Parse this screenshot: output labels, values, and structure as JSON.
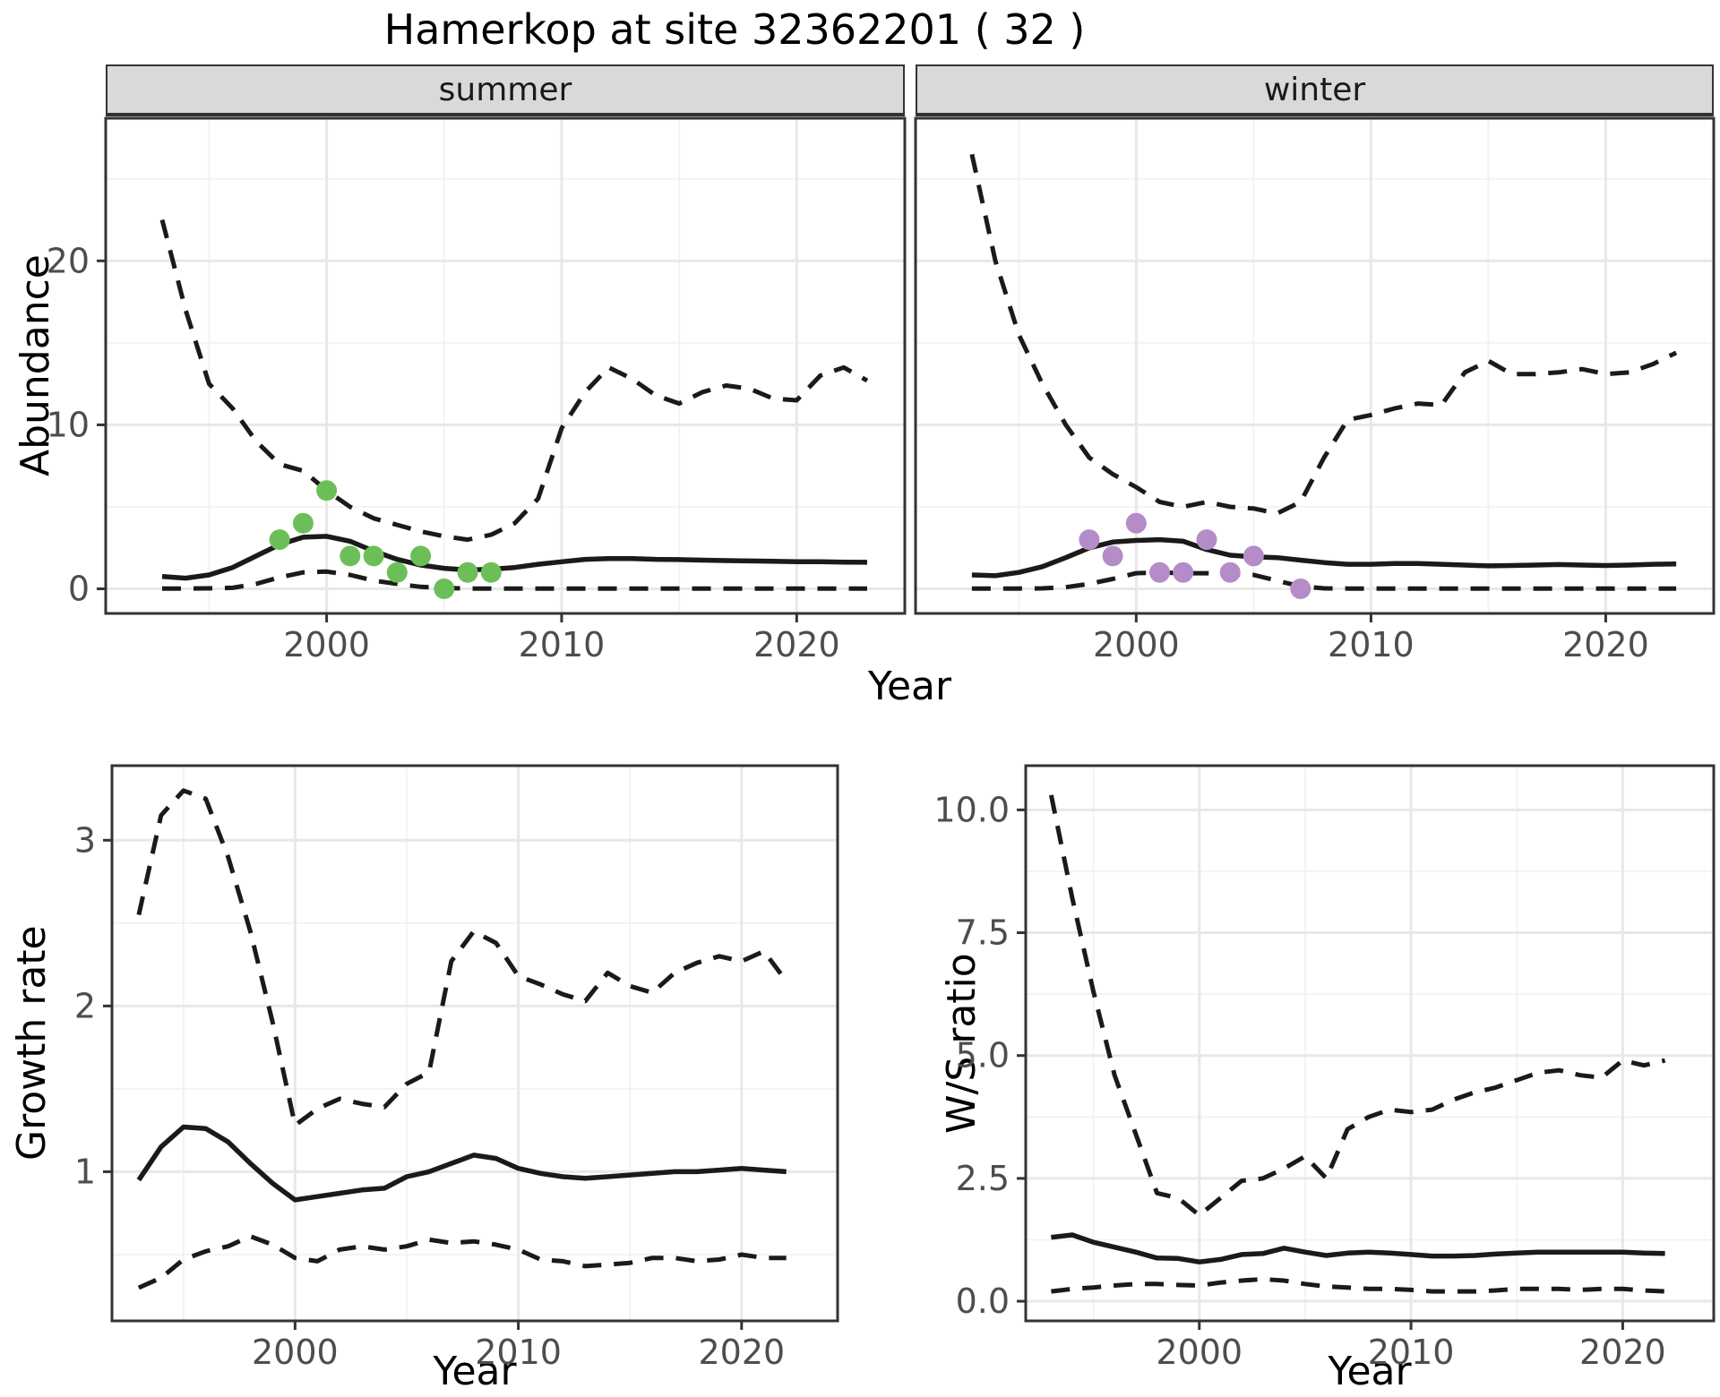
{
  "title": "Hamerkop at site 32362201 ( 32 )",
  "facets": {
    "summer": "summer",
    "winter": "winter"
  },
  "axis_titles": {
    "x_top": "Year",
    "x_bottom_left": "Year",
    "x_bottom_right": "Year",
    "y_top": "Abundance",
    "y_bottom_left": "Growth rate",
    "y_bottom_right": "W/S ratio"
  },
  "colors": {
    "background": "#ffffff",
    "line": "#1a1a1a",
    "grid_major": "#e8e8e8",
    "grid_minor": "#f2f2f2",
    "strip_bg": "#d9d9d9",
    "panel_border": "#333333",
    "tick_text": "#4d4d4d",
    "point_summer_green": "#6cbf58",
    "point_winter_purple": "#b48cc8"
  },
  "chart_data": [
    {
      "type": "line",
      "facet": "summer",
      "xlabel": "Year",
      "ylabel": "Abundance",
      "xlim": [
        1990.6,
        2024.6
      ],
      "ylim": [
        -1.5,
        28.7
      ],
      "xticks": [
        2000,
        2010,
        2020
      ],
      "xtick_labels": [
        "2000",
        "2010",
        "2020"
      ],
      "yticks": [
        0,
        10,
        20
      ],
      "ytick_labels": [
        "0",
        "10",
        "20"
      ],
      "grid": true,
      "x": [
        1993,
        1994,
        1995,
        1996,
        1997,
        1998,
        1999,
        2000,
        2001,
        2002,
        2003,
        2004,
        2005,
        2006,
        2007,
        2008,
        2009,
        2010,
        2011,
        2012,
        2013,
        2014,
        2015,
        2016,
        2017,
        2018,
        2019,
        2020,
        2021,
        2022,
        2023
      ],
      "series": [
        {
          "name": "upper-95ci",
          "style": "dashed",
          "values": [
            22.5,
            17.0,
            12.5,
            11.0,
            9.0,
            7.6,
            7.2,
            6.0,
            5.0,
            4.3,
            3.9,
            3.5,
            3.2,
            3.0,
            3.3,
            4.0,
            5.5,
            9.8,
            12.0,
            13.5,
            12.8,
            11.8,
            11.3,
            12.0,
            12.4,
            12.2,
            11.6,
            11.5,
            13.0,
            13.5,
            12.7
          ]
        },
        {
          "name": "median",
          "style": "solid",
          "values": [
            0.75,
            0.65,
            0.85,
            1.3,
            2.0,
            2.7,
            3.15,
            3.2,
            2.9,
            2.3,
            1.8,
            1.45,
            1.25,
            1.15,
            1.2,
            1.3,
            1.5,
            1.65,
            1.8,
            1.85,
            1.85,
            1.8,
            1.78,
            1.75,
            1.72,
            1.7,
            1.68,
            1.65,
            1.65,
            1.63,
            1.62
          ]
        },
        {
          "name": "lower-95ci",
          "style": "dashed",
          "values": [
            0.02,
            0.02,
            0.03,
            0.06,
            0.3,
            0.7,
            1.0,
            1.05,
            0.85,
            0.5,
            0.3,
            0.12,
            0.05,
            0.02,
            0.02,
            0.02,
            0.02,
            0.02,
            0.02,
            0.02,
            0.02,
            0.02,
            0.02,
            0.02,
            0.02,
            0.02,
            0.02,
            0.02,
            0.02,
            0.02,
            0.02
          ]
        }
      ],
      "points": {
        "name": "observed-counts-summer",
        "color_key": "point_summer_green",
        "x": [
          1998,
          1999,
          2000,
          2001,
          2002,
          2003,
          2004,
          2005,
          2006,
          2007
        ],
        "y": [
          3,
          4,
          6,
          2,
          2,
          1,
          2,
          0,
          1,
          1
        ]
      }
    },
    {
      "type": "line",
      "facet": "winter",
      "xlabel": "Year",
      "ylabel": "Abundance",
      "xlim": [
        1990.6,
        2024.6
      ],
      "ylim": [
        -1.5,
        28.7
      ],
      "xticks": [
        2000,
        2010,
        2020
      ],
      "xtick_labels": [
        "2000",
        "2010",
        "2020"
      ],
      "yticks": [
        0,
        10,
        20
      ],
      "ytick_labels": [
        "0",
        "10",
        "20"
      ],
      "show_y_labels": false,
      "grid": true,
      "x": [
        1993,
        1994,
        1995,
        1996,
        1997,
        1998,
        1999,
        2000,
        2001,
        2002,
        2003,
        2004,
        2005,
        2006,
        2007,
        2008,
        2009,
        2010,
        2011,
        2012,
        2013,
        2014,
        2015,
        2016,
        2017,
        2018,
        2019,
        2020,
        2021,
        2022,
        2023
      ],
      "series": [
        {
          "name": "upper-95ci",
          "style": "dashed",
          "values": [
            26.5,
            20.0,
            15.5,
            12.5,
            10.0,
            8.0,
            7.0,
            6.2,
            5.3,
            5.0,
            5.3,
            5.0,
            4.9,
            4.6,
            5.3,
            8.0,
            10.3,
            10.6,
            11.0,
            11.3,
            11.2,
            13.2,
            13.9,
            13.1,
            13.1,
            13.2,
            13.4,
            13.1,
            13.2,
            13.7,
            14.4
          ]
        },
        {
          "name": "median",
          "style": "solid",
          "values": [
            0.85,
            0.8,
            1.0,
            1.35,
            1.9,
            2.5,
            2.85,
            2.95,
            3.0,
            2.9,
            2.4,
            2.05,
            1.95,
            1.9,
            1.75,
            1.6,
            1.5,
            1.5,
            1.55,
            1.55,
            1.5,
            1.45,
            1.4,
            1.42,
            1.45,
            1.48,
            1.45,
            1.42,
            1.45,
            1.5,
            1.52
          ]
        },
        {
          "name": "lower-95ci",
          "style": "dashed",
          "values": [
            0.02,
            0.02,
            0.02,
            0.03,
            0.1,
            0.3,
            0.6,
            0.95,
            1.0,
            0.95,
            0.95,
            0.9,
            0.85,
            0.5,
            0.15,
            0.03,
            0.02,
            0.02,
            0.02,
            0.02,
            0.02,
            0.02,
            0.02,
            0.02,
            0.02,
            0.02,
            0.02,
            0.02,
            0.02,
            0.02,
            0.02
          ]
        }
      ],
      "points": {
        "name": "observed-counts-winter",
        "color_key": "point_winter_purple",
        "x": [
          1998,
          1999,
          2000,
          2001,
          2002,
          2003,
          2004,
          2005,
          2007
        ],
        "y": [
          3,
          2,
          4,
          1,
          1,
          3,
          1,
          2,
          0
        ]
      }
    },
    {
      "type": "line",
      "facet": "",
      "xlabel": "Year",
      "ylabel": "Growth rate",
      "xlim": [
        1991.8,
        2024.3
      ],
      "ylim": [
        0.1,
        3.45
      ],
      "xticks": [
        2000,
        2010,
        2020
      ],
      "xtick_labels": [
        "2000",
        "2010",
        "2020"
      ],
      "yticks": [
        1,
        2,
        3
      ],
      "ytick_labels": [
        "1",
        "2",
        "3"
      ],
      "grid": true,
      "x": [
        1993,
        1994,
        1995,
        1996,
        1997,
        1998,
        1999,
        2000,
        2001,
        2002,
        2003,
        2004,
        2005,
        2006,
        2007,
        2008,
        2009,
        2010,
        2011,
        2012,
        2013,
        2014,
        2015,
        2016,
        2017,
        2018,
        2019,
        2020,
        2021,
        2022
      ],
      "series": [
        {
          "name": "upper-95ci",
          "style": "dashed",
          "values": [
            2.55,
            3.15,
            3.3,
            3.25,
            2.9,
            2.45,
            1.9,
            1.28,
            1.38,
            1.44,
            1.41,
            1.39,
            1.53,
            1.6,
            2.27,
            2.45,
            2.38,
            2.18,
            2.13,
            2.07,
            2.03,
            2.2,
            2.12,
            2.08,
            2.2,
            2.26,
            2.3,
            2.27,
            2.33,
            2.15
          ]
        },
        {
          "name": "median",
          "style": "solid",
          "values": [
            0.95,
            1.15,
            1.27,
            1.26,
            1.18,
            1.05,
            0.93,
            0.83,
            0.85,
            0.87,
            0.89,
            0.9,
            0.97,
            1.0,
            1.05,
            1.1,
            1.08,
            1.02,
            0.99,
            0.97,
            0.96,
            0.97,
            0.98,
            0.99,
            1.0,
            1.0,
            1.01,
            1.02,
            1.01,
            1.0
          ]
        },
        {
          "name": "lower-95ci",
          "style": "dashed",
          "values": [
            0.3,
            0.36,
            0.47,
            0.52,
            0.55,
            0.61,
            0.56,
            0.48,
            0.46,
            0.53,
            0.55,
            0.53,
            0.55,
            0.59,
            0.57,
            0.58,
            0.56,
            0.53,
            0.47,
            0.46,
            0.43,
            0.44,
            0.45,
            0.48,
            0.48,
            0.46,
            0.47,
            0.5,
            0.48,
            0.48
          ]
        }
      ]
    },
    {
      "type": "line",
      "facet": "",
      "xlabel": "Year",
      "ylabel": "W/S ratio",
      "xlim": [
        1991.8,
        2024.3
      ],
      "ylim": [
        -0.4,
        10.9
      ],
      "xticks": [
        2000,
        2010,
        2020
      ],
      "xtick_labels": [
        "2000",
        "2010",
        "2020"
      ],
      "yticks": [
        0,
        2.5,
        5,
        7.5,
        10
      ],
      "ytick_labels": [
        "0.0",
        "2.5",
        "5.0",
        "7.5",
        "10.0"
      ],
      "grid": true,
      "x": [
        1993,
        1994,
        1995,
        1996,
        1997,
        1998,
        1999,
        2000,
        2001,
        2002,
        2003,
        2004,
        2005,
        2006,
        2007,
        2008,
        2009,
        2010,
        2011,
        2012,
        2013,
        2014,
        2015,
        2016,
        2017,
        2018,
        2019,
        2020,
        2021,
        2022
      ],
      "series": [
        {
          "name": "upper-95ci",
          "style": "dashed",
          "values": [
            10.3,
            8.2,
            6.3,
            4.6,
            3.4,
            2.2,
            2.1,
            1.75,
            2.1,
            2.45,
            2.5,
            2.7,
            2.95,
            2.5,
            3.5,
            3.75,
            3.9,
            3.85,
            3.9,
            4.1,
            4.25,
            4.35,
            4.5,
            4.65,
            4.7,
            4.6,
            4.55,
            4.9,
            4.8,
            4.9
          ]
        },
        {
          "name": "median",
          "style": "solid",
          "values": [
            1.3,
            1.35,
            1.2,
            1.1,
            1.0,
            0.88,
            0.87,
            0.8,
            0.85,
            0.95,
            0.97,
            1.08,
            1.0,
            0.93,
            0.98,
            1.0,
            0.98,
            0.95,
            0.92,
            0.92,
            0.93,
            0.96,
            0.98,
            1.0,
            1.0,
            1.0,
            1.0,
            1.0,
            0.98,
            0.97
          ]
        },
        {
          "name": "lower-95ci",
          "style": "dashed",
          "values": [
            0.2,
            0.25,
            0.28,
            0.32,
            0.35,
            0.35,
            0.33,
            0.32,
            0.38,
            0.42,
            0.45,
            0.42,
            0.35,
            0.3,
            0.28,
            0.25,
            0.25,
            0.23,
            0.2,
            0.2,
            0.2,
            0.22,
            0.25,
            0.25,
            0.25,
            0.23,
            0.25,
            0.25,
            0.22,
            0.2
          ]
        }
      ]
    }
  ]
}
